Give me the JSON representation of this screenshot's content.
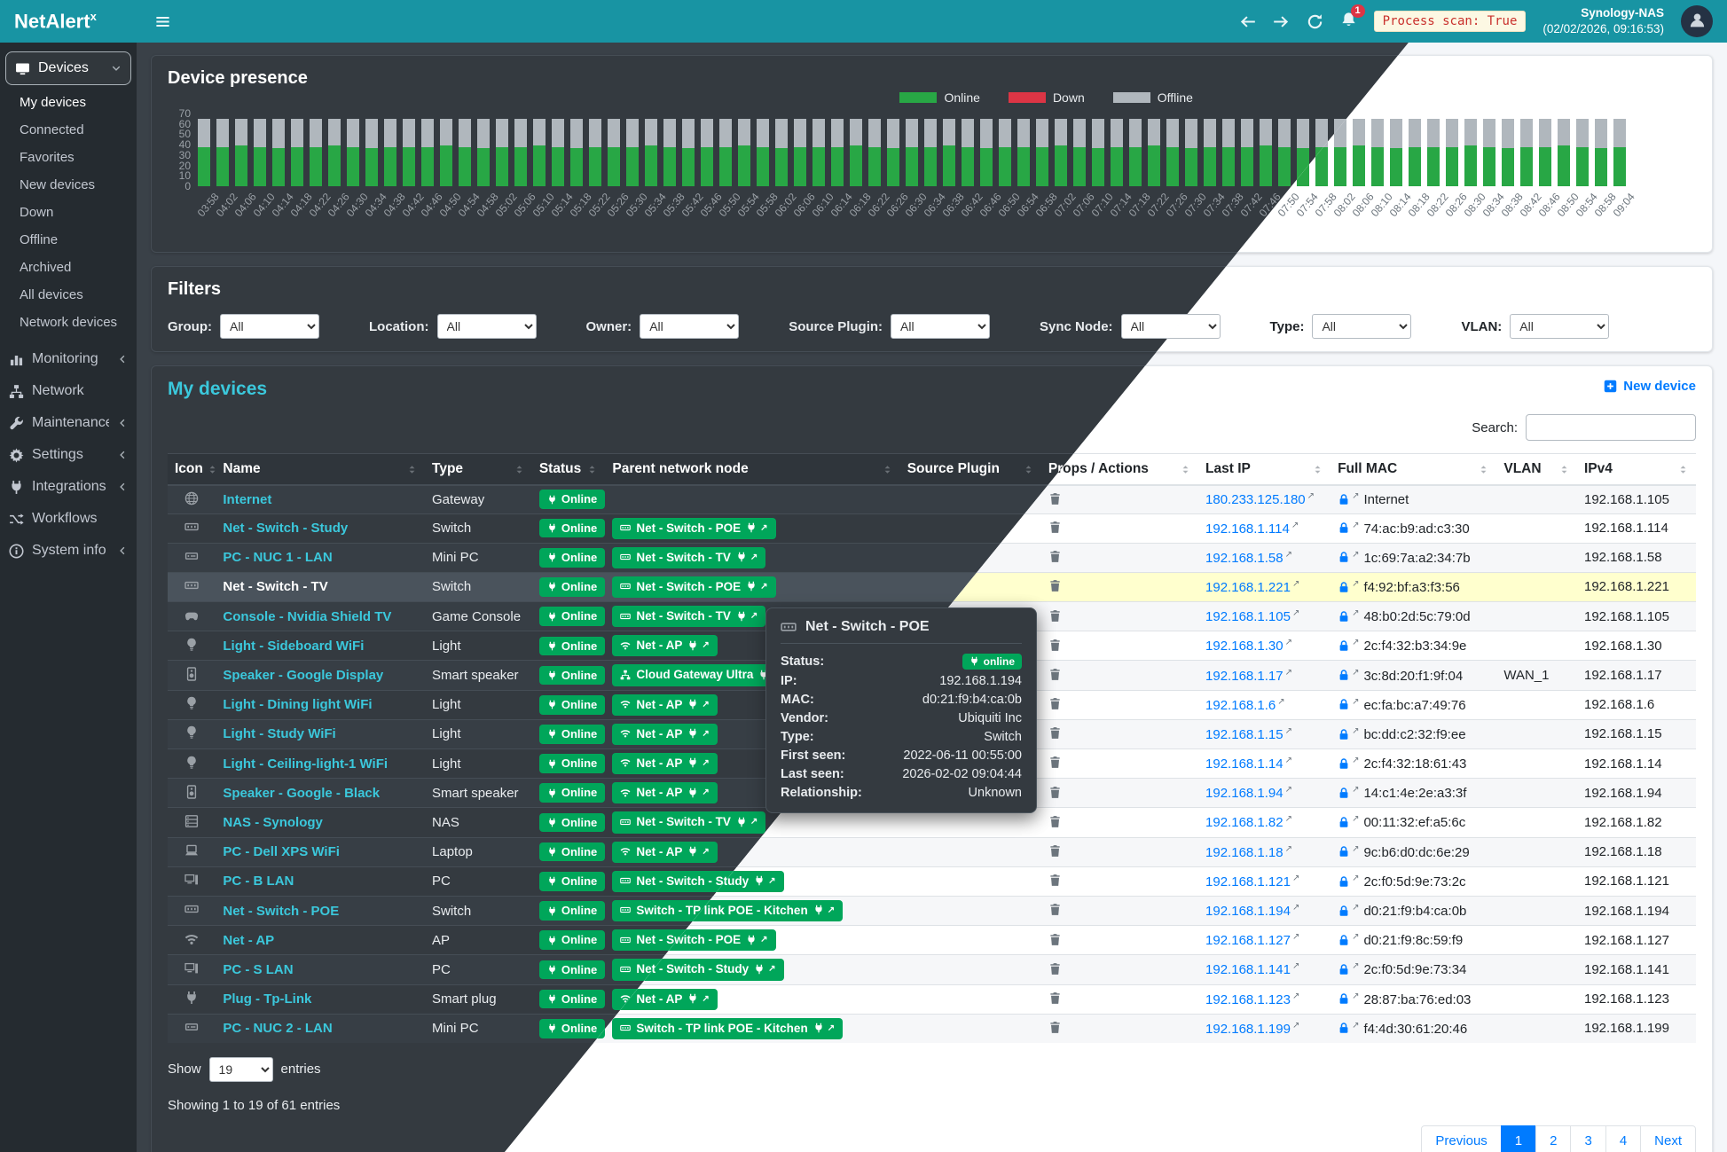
{
  "header": {
    "brand_main": "NetAlert",
    "brand_sup": "x",
    "notification_count": "1",
    "process_scan": "Process scan: True",
    "host": "Synology-NAS",
    "timestamp": "(02/02/2026, 09:16:53)"
  },
  "sidebar": {
    "items": [
      {
        "label": "Devices",
        "icon": "devices-icon",
        "chevron": "down",
        "active": true,
        "children": [
          "My devices",
          "Connected",
          "Favorites",
          "New devices",
          "Down",
          "Offline",
          "Archived",
          "All devices",
          "Network devices"
        ]
      },
      {
        "label": "Monitoring",
        "icon": "monitoring-icon",
        "chevron": "left"
      },
      {
        "label": "Network",
        "icon": "network-icon",
        "chevron": ""
      },
      {
        "label": "Maintenance",
        "icon": "maintenance-icon",
        "chevron": "left"
      },
      {
        "label": "Settings",
        "icon": "settings-icon",
        "chevron": "left"
      },
      {
        "label": "Integrations",
        "icon": "integrations-icon",
        "chevron": "left"
      },
      {
        "label": "Workflows",
        "icon": "workflows-icon",
        "chevron": ""
      },
      {
        "label": "System info",
        "icon": "systeminfo-icon",
        "chevron": "left"
      }
    ]
  },
  "chart_data": {
    "type": "bar",
    "stacked": true,
    "title": "Device presence",
    "xlabel": "",
    "ylabel": "",
    "ylim": [
      0,
      70
    ],
    "yticks": [
      0,
      10,
      20,
      30,
      40,
      50,
      60,
      70
    ],
    "legend_position": "top",
    "legend": [
      {
        "label": "Online",
        "color": "#28a745"
      },
      {
        "label": "Down",
        "color": "#dc3545"
      },
      {
        "label": "Offline",
        "color": "#b0b7bd"
      }
    ],
    "categories": [
      "03:58",
      "04:02",
      "04:06",
      "04:10",
      "04:14",
      "04:18",
      "04:22",
      "04:26",
      "04:30",
      "04:34",
      "04:38",
      "04:42",
      "04:46",
      "04:50",
      "04:54",
      "04:58",
      "05:02",
      "05:06",
      "05:10",
      "05:14",
      "05:18",
      "05:22",
      "05:26",
      "05:30",
      "05:34",
      "05:38",
      "05:42",
      "05:46",
      "05:50",
      "05:54",
      "05:58",
      "06:02",
      "06:06",
      "06:10",
      "06:14",
      "06:18",
      "06:22",
      "06:26",
      "06:30",
      "06:34",
      "06:38",
      "06:42",
      "06:46",
      "06:50",
      "06:54",
      "06:58",
      "07:02",
      "07:06",
      "07:10",
      "07:14",
      "07:18",
      "07:22",
      "07:26",
      "07:30",
      "07:34",
      "07:38",
      "07:42",
      "07:46",
      "07:50",
      "07:54",
      "07:58",
      "08:02",
      "08:06",
      "08:10",
      "08:14",
      "08:18",
      "08:22",
      "08:26",
      "08:30",
      "08:34",
      "08:38",
      "08:42",
      "08:46",
      "08:50",
      "08:54",
      "08:58",
      "09:04"
    ],
    "series": [
      {
        "name": "Online",
        "color": "#28a745",
        "values": [
          38,
          38,
          39,
          38,
          37,
          38,
          38,
          39,
          38,
          37,
          38,
          38,
          38,
          39,
          38,
          37,
          38,
          38,
          39,
          38,
          37,
          38,
          38,
          38,
          39,
          38,
          37,
          38,
          38,
          39,
          38,
          37,
          38,
          38,
          38,
          39,
          38,
          37,
          38,
          38,
          39,
          38,
          37,
          38,
          38,
          38,
          39,
          38,
          37,
          38,
          38,
          39,
          38,
          37,
          38,
          38,
          38,
          39,
          38,
          37,
          38,
          38,
          39,
          38,
          37,
          38,
          38,
          38,
          39,
          38,
          37,
          38,
          38,
          39,
          38,
          37,
          38
        ]
      },
      {
        "name": "Down",
        "color": "#dc3545",
        "values": [
          0,
          0,
          0,
          0,
          0,
          0,
          0,
          0,
          0,
          0,
          0,
          0,
          0,
          0,
          0,
          0,
          0,
          0,
          0,
          0,
          0,
          0,
          0,
          0,
          0,
          0,
          0,
          0,
          0,
          0,
          0,
          0,
          0,
          0,
          0,
          0,
          0,
          0,
          0,
          0,
          0,
          0,
          0,
          0,
          0,
          0,
          0,
          0,
          0,
          0,
          0,
          0,
          0,
          0,
          0,
          0,
          0,
          0,
          0,
          0,
          0,
          0,
          0,
          0,
          0,
          0,
          0,
          0,
          0,
          0,
          0,
          0,
          0,
          0,
          0,
          0,
          0
        ]
      },
      {
        "name": "Offline",
        "color": "#b0b7bd",
        "values": [
          27,
          27,
          26,
          27,
          28,
          27,
          27,
          26,
          27,
          28,
          27,
          27,
          27,
          26,
          27,
          28,
          27,
          27,
          26,
          27,
          28,
          27,
          27,
          27,
          26,
          27,
          28,
          27,
          27,
          26,
          27,
          28,
          27,
          27,
          27,
          26,
          27,
          28,
          27,
          27,
          26,
          27,
          28,
          27,
          27,
          27,
          26,
          27,
          28,
          27,
          27,
          26,
          27,
          28,
          27,
          27,
          27,
          26,
          27,
          28,
          27,
          27,
          26,
          27,
          28,
          27,
          27,
          27,
          26,
          27,
          28,
          27,
          27,
          26,
          27,
          28,
          27
        ]
      }
    ]
  },
  "filters": {
    "title": "Filters",
    "items": [
      {
        "label": "Group:",
        "value": "All"
      },
      {
        "label": "Location:",
        "value": "All"
      },
      {
        "label": "Owner:",
        "value": "All"
      },
      {
        "label": "Source Plugin:",
        "value": "All"
      },
      {
        "label": "Sync Node:",
        "value": "All"
      },
      {
        "label": "Type:",
        "value": "All"
      },
      {
        "label": "VLAN:",
        "value": "All"
      }
    ]
  },
  "devices": {
    "title": "My devices",
    "new_device": "New device",
    "search_label": "Search:",
    "columns": [
      "Icon",
      "Name",
      "Type",
      "Status",
      "Parent network node",
      "Source Plugin",
      "Props / Actions",
      "Last IP",
      "Full MAC",
      "VLAN",
      "IPv4"
    ],
    "rows": [
      {
        "icon": "globe-icon",
        "name": "Internet",
        "type": "Gateway",
        "status": "Online",
        "parent": null,
        "source_plugin": "",
        "last_ip": "180.233.125.180",
        "mac": "Internet",
        "vlan": "",
        "ipv4": "192.168.1.105",
        "highlighted": false
      },
      {
        "icon": "switch-icon",
        "name": "Net - Switch - Study",
        "type": "Switch",
        "status": "Online",
        "parent": {
          "icon": "switch-icon",
          "label": "Net - Switch - POE"
        },
        "source_plugin": "",
        "last_ip": "192.168.1.114",
        "mac": "74:ac:b9:ad:c3:30",
        "vlan": "",
        "ipv4": "192.168.1.114",
        "highlighted": false
      },
      {
        "icon": "minipc-icon",
        "name": "PC - NUC 1 - LAN",
        "type": "Mini PC",
        "status": "Online",
        "parent": {
          "icon": "switch-icon",
          "label": "Net - Switch - TV"
        },
        "source_plugin": "",
        "last_ip": "192.168.1.58",
        "mac": "1c:69:7a:a2:34:7b",
        "vlan": "",
        "ipv4": "192.168.1.58",
        "highlighted": false
      },
      {
        "icon": "switch-icon",
        "name": "Net - Switch - TV",
        "type": "Switch",
        "status": "Online",
        "parent": {
          "icon": "switch-icon",
          "label": "Net - Switch - POE"
        },
        "source_plugin": "",
        "last_ip": "192.168.1.221",
        "mac": "f4:92:bf:a3:f3:56",
        "vlan": "",
        "ipv4": "192.168.1.221",
        "highlighted": true
      },
      {
        "icon": "gamepad-icon",
        "name": "Console - Nvidia Shield TV",
        "type": "Game Console",
        "status": "Online",
        "parent": {
          "icon": "switch-icon",
          "label": "Net - Switch - TV"
        },
        "source_plugin": "",
        "last_ip": "192.168.1.105",
        "mac": "48:b0:2d:5c:79:0d",
        "vlan": "",
        "ipv4": "192.168.1.105",
        "highlighted": false
      },
      {
        "icon": "bulb-icon",
        "name": "Light - Sideboard WiFi",
        "type": "Light",
        "status": "Online",
        "parent": {
          "icon": "wifi-icon",
          "label": "Net - AP"
        },
        "source_plugin": "",
        "last_ip": "192.168.1.30",
        "mac": "2c:f4:32:b3:34:9e",
        "vlan": "",
        "ipv4": "192.168.1.30",
        "highlighted": false
      },
      {
        "icon": "speaker-icon",
        "name": "Speaker - Google Display",
        "type": "Smart speaker",
        "status": "Online",
        "parent": {
          "icon": "sitemap-icon",
          "label": "Cloud Gateway Ultra"
        },
        "source_plugin": "",
        "last_ip": "192.168.1.17",
        "mac": "3c:8d:20:f1:9f:04",
        "vlan": "WAN_1",
        "ipv4": "192.168.1.17",
        "highlighted": false
      },
      {
        "icon": "bulb-icon",
        "name": "Light - Dining light WiFi",
        "type": "Light",
        "status": "Online",
        "parent": {
          "icon": "wifi-icon",
          "label": "Net - AP"
        },
        "source_plugin": "",
        "last_ip": "192.168.1.6",
        "mac": "ec:fa:bc:a7:49:76",
        "vlan": "",
        "ipv4": "192.168.1.6",
        "highlighted": false
      },
      {
        "icon": "bulb-icon",
        "name": "Light - Study WiFi",
        "type": "Light",
        "status": "Online",
        "parent": {
          "icon": "wifi-icon",
          "label": "Net - AP"
        },
        "source_plugin": "",
        "last_ip": "192.168.1.15",
        "mac": "bc:dd:c2:32:f9:ee",
        "vlan": "",
        "ipv4": "192.168.1.15",
        "highlighted": false
      },
      {
        "icon": "bulb-icon",
        "name": "Light - Ceiling-light-1 WiFi",
        "type": "Light",
        "status": "Online",
        "parent": {
          "icon": "wifi-icon",
          "label": "Net - AP"
        },
        "source_plugin": "",
        "last_ip": "192.168.1.14",
        "mac": "2c:f4:32:18:61:43",
        "vlan": "",
        "ipv4": "192.168.1.14",
        "highlighted": false
      },
      {
        "icon": "speaker-icon",
        "name": "Speaker - Google - Black",
        "type": "Smart speaker",
        "status": "Online",
        "parent": {
          "icon": "wifi-icon",
          "label": "Net - AP"
        },
        "source_plugin": "",
        "last_ip": "192.168.1.94",
        "mac": "14:c1:4e:2e:a3:3f",
        "vlan": "",
        "ipv4": "192.168.1.94",
        "highlighted": false
      },
      {
        "icon": "nas-icon",
        "name": "NAS - Synology",
        "type": "NAS",
        "status": "Online",
        "parent": {
          "icon": "switch-icon",
          "label": "Net - Switch - TV"
        },
        "source_plugin": "",
        "last_ip": "192.168.1.82",
        "mac": "00:11:32:ef:a5:6c",
        "vlan": "",
        "ipv4": "192.168.1.82",
        "highlighted": false
      },
      {
        "icon": "laptop-icon",
        "name": "PC - Dell XPS WiFi",
        "type": "Laptop",
        "status": "Online",
        "parent": {
          "icon": "wifi-icon",
          "label": "Net - AP"
        },
        "source_plugin": "",
        "last_ip": "192.168.1.18",
        "mac": "9c:b6:d0:dc:6e:29",
        "vlan": "",
        "ipv4": "192.168.1.18",
        "highlighted": false
      },
      {
        "icon": "desktop-icon",
        "name": "PC - B LAN",
        "type": "PC",
        "status": "Online",
        "parent": {
          "icon": "switch-icon",
          "label": "Net - Switch - Study"
        },
        "source_plugin": "",
        "last_ip": "192.168.1.121",
        "mac": "2c:f0:5d:9e:73:2c",
        "vlan": "",
        "ipv4": "192.168.1.121",
        "highlighted": false
      },
      {
        "icon": "switch-icon",
        "name": "Net - Switch - POE",
        "type": "Switch",
        "status": "Online",
        "parent": {
          "icon": "switch-icon",
          "label": "Switch - TP link POE - Kitchen"
        },
        "source_plugin": "",
        "last_ip": "192.168.1.194",
        "mac": "d0:21:f9:b4:ca:0b",
        "vlan": "",
        "ipv4": "192.168.1.194",
        "highlighted": false
      },
      {
        "icon": "wifi-icon",
        "name": "Net - AP",
        "type": "AP",
        "status": "Online",
        "parent": {
          "icon": "switch-icon",
          "label": "Net - Switch - POE"
        },
        "source_plugin": "",
        "last_ip": "192.168.1.127",
        "mac": "d0:21:f9:8c:59:f9",
        "vlan": "",
        "ipv4": "192.168.1.127",
        "highlighted": false
      },
      {
        "icon": "desktop-icon",
        "name": "PC - S LAN",
        "type": "PC",
        "status": "Online",
        "parent": {
          "icon": "switch-icon",
          "label": "Net - Switch - Study"
        },
        "source_plugin": "",
        "last_ip": "192.168.1.141",
        "mac": "2c:f0:5d:9e:73:34",
        "vlan": "",
        "ipv4": "192.168.1.141",
        "highlighted": false
      },
      {
        "icon": "plug-icon",
        "name": "Plug - Tp-Link",
        "type": "Smart plug",
        "status": "Online",
        "parent": {
          "icon": "wifi-icon",
          "label": "Net - AP"
        },
        "source_plugin": "",
        "last_ip": "192.168.1.123",
        "mac": "28:87:ba:76:ed:03",
        "vlan": "",
        "ipv4": "192.168.1.123",
        "highlighted": false
      },
      {
        "icon": "minipc-icon",
        "name": "PC - NUC 2 - LAN",
        "type": "Mini PC",
        "status": "Online",
        "parent": {
          "icon": "switch-icon",
          "label": "Switch - TP link POE - Kitchen"
        },
        "source_plugin": "",
        "last_ip": "192.168.1.199",
        "mac": "f4:4d:30:61:20:46",
        "vlan": "",
        "ipv4": "192.168.1.199",
        "highlighted": false
      }
    ],
    "show_label": "Show",
    "entries_value": "19",
    "entries_label": "entries",
    "summary": "Showing 1 to 19 of 61 entries",
    "pagination": [
      "Previous",
      "1",
      "2",
      "3",
      "4",
      "Next"
    ],
    "active_page": "1"
  },
  "tooltip": {
    "icon": "switch-icon",
    "title": "Net - Switch - POE",
    "rows": [
      {
        "label": "Status:",
        "value": "online",
        "badge": true
      },
      {
        "label": "IP:",
        "value": "192.168.1.194"
      },
      {
        "label": "MAC:",
        "value": "d0:21:f9:b4:ca:0b"
      },
      {
        "label": "Vendor:",
        "value": "Ubiquiti Inc"
      },
      {
        "label": "Type:",
        "value": "Switch"
      },
      {
        "label": "First seen:",
        "value": "2022-06-11 00:55:00"
      },
      {
        "label": "Last seen:",
        "value": "2026-02-02 09:04:44"
      },
      {
        "label": "Relationship:",
        "value": "Unknown"
      }
    ]
  }
}
